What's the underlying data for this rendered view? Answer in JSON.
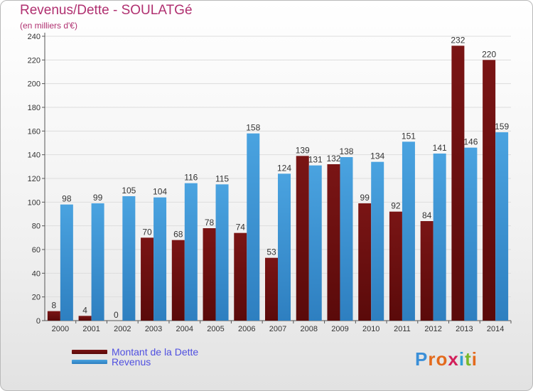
{
  "header": {
    "title": "Revenus/Dette - SOULATGé",
    "subtitle": "(en milliers d'€)"
  },
  "colors": {
    "dette": "#7a1515",
    "dette_dark": "#5a0a0a",
    "revenus": "#4aa3e0",
    "revenus_dark": "#2e7fc0",
    "axis_text": "#333333",
    "grid": "#dddddd",
    "title": "#b03070"
  },
  "legend": {
    "dette_label": "Montant de la Dette",
    "revenus_label": "Revenus"
  },
  "logo": {
    "letters": [
      "P",
      "r",
      "o",
      "x",
      "i",
      "t",
      "i"
    ],
    "colors": [
      "#3a8fd8",
      "#e36a1c",
      "#e36a1c",
      "#d21f5a",
      "#2f9fd5",
      "#77b82a",
      "#e36a1c"
    ]
  },
  "chart_data": {
    "type": "bar",
    "categories": [
      "2000",
      "2001",
      "2002",
      "2003",
      "2004",
      "2005",
      "2006",
      "2007",
      "2008",
      "2009",
      "2010",
      "2011",
      "2012",
      "2013",
      "2014"
    ],
    "series": [
      {
        "name": "Montant de la Dette",
        "values": [
          8,
          4,
          0,
          70,
          68,
          78,
          74,
          53,
          139,
          132,
          99,
          92,
          84,
          232,
          220
        ]
      },
      {
        "name": "Revenus",
        "values": [
          98,
          99,
          105,
          104,
          116,
          115,
          158,
          124,
          131,
          138,
          134,
          151,
          141,
          146,
          159
        ]
      }
    ],
    "ylim": [
      0,
      240
    ],
    "yticks": [
      0,
      20,
      40,
      60,
      80,
      100,
      120,
      140,
      160,
      180,
      200,
      220,
      240
    ],
    "grid": true,
    "legend_position": "bottom-left"
  }
}
